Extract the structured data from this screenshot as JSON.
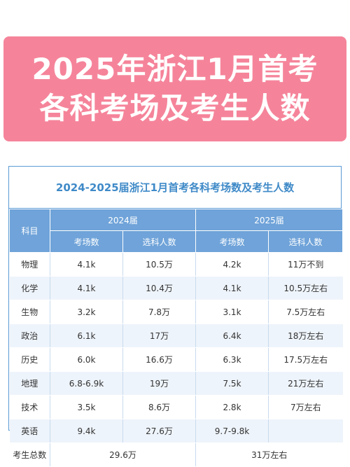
{
  "banner": {
    "line1": "2025年浙江1月首考",
    "line2": "各科考场及考生人数"
  },
  "table": {
    "title": "2024-2025届浙江1月首考各科考场数及考生人数",
    "col_subject": "科目",
    "group_2024": "2024届",
    "group_2025": "2025届",
    "sub_rooms": "考场数",
    "sub_students": "选科人数",
    "rows": [
      {
        "subject": "物理",
        "r2024": "4.1k",
        "s2024": "10.5万",
        "r2025": "4.2k",
        "s2025": "11万不到"
      },
      {
        "subject": "化学",
        "r2024": "4.1k",
        "s2024": "10.4万",
        "r2025": "4.1k",
        "s2025": "10.5万左右"
      },
      {
        "subject": "生物",
        "r2024": "3.2k",
        "s2024": "7.8万",
        "r2025": "3.1k",
        "s2025": "7.5万左右"
      },
      {
        "subject": "政治",
        "r2024": "6.1k",
        "s2024": "17万",
        "r2025": "6.4k",
        "s2025": "18万左右"
      },
      {
        "subject": "历史",
        "r2024": "6.0k",
        "s2024": "16.6万",
        "r2025": "6.3k",
        "s2025": "17.5万左右"
      },
      {
        "subject": "地理",
        "r2024": "6.8-6.9k",
        "s2024": "19万",
        "r2025": "7.5k",
        "s2025": "21万左右"
      },
      {
        "subject": "技术",
        "r2024": "3.5k",
        "s2024": "8.6万",
        "r2025": "2.8k",
        "s2025": "7万左右"
      },
      {
        "subject": "英语",
        "r2024": "9.4k",
        "s2024": "27.6万",
        "r2025": "9.7-9.8k",
        "s2025": ""
      }
    ],
    "total_label": "考生总数",
    "total_2024": "29.6万",
    "total_2025": "31万左右"
  }
}
